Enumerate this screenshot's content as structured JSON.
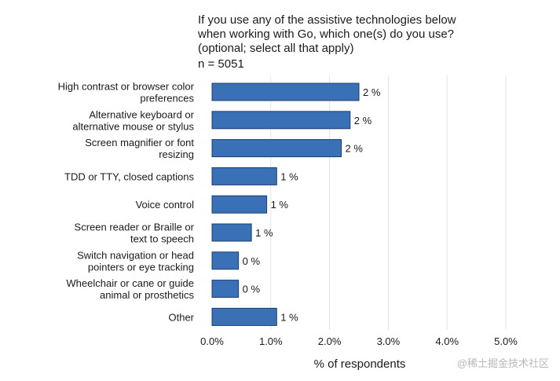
{
  "chart_data": {
    "type": "bar",
    "orientation": "horizontal",
    "title": [
      "If you use any of the assistive technologies below",
      "when working with Go, which one(s) do you use?",
      "(optional; select all that apply)"
    ],
    "subtitle": "n = 5051",
    "categories": [
      [
        "High contrast or browser color",
        "preferences"
      ],
      [
        "Alternative keyboard or",
        "alternative mouse or stylus"
      ],
      [
        "Screen magnifier or font",
        "resizing"
      ],
      [
        "TDD or TTY, closed captions"
      ],
      [
        "Voice control"
      ],
      [
        "Screen reader or Braille or",
        "text to speech"
      ],
      [
        "Switch navigation or head",
        "pointers or eye tracking"
      ],
      [
        "Wheelchair or cane or guide",
        "animal or prosthetics"
      ],
      [
        "Other"
      ]
    ],
    "values": [
      2.5,
      2.35,
      2.2,
      1.1,
      0.93,
      0.67,
      0.45,
      0.45,
      1.1
    ],
    "data_labels": [
      "2 %",
      "2 %",
      "2 %",
      "1 %",
      "1 %",
      "1 %",
      "0 %",
      "0 %",
      "1 %"
    ],
    "xlim": [
      0,
      5.0
    ],
    "xticks": [
      0,
      1,
      2,
      3,
      4,
      5
    ],
    "xtick_labels": [
      "0.0%",
      "1.0%",
      "2.0%",
      "3.0%",
      "4.0%",
      "5.0%"
    ],
    "xlabel": "% of respondents",
    "ylabel": "",
    "grid": "vertical",
    "bar_color": "#3a70b5",
    "bar_edge": "#1f3f6b"
  },
  "watermark": "@稀土掘金技术社区"
}
